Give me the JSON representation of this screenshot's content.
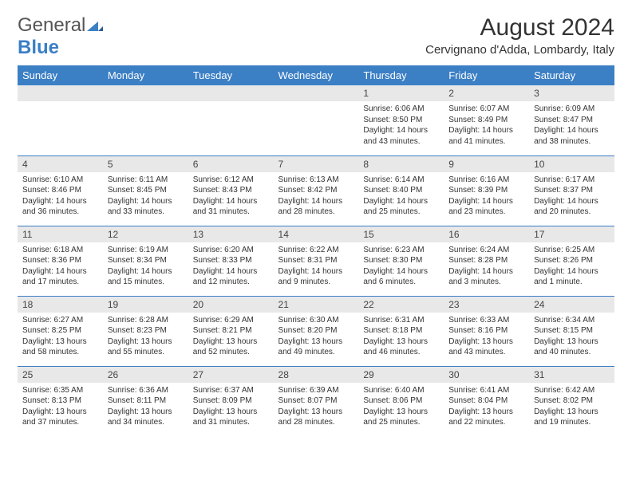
{
  "brand": {
    "text1": "General",
    "text2": "Blue",
    "icon_color": "#3b7fc4"
  },
  "title": {
    "month": "August 2024",
    "location": "Cervignano d'Adda, Lombardy, Italy"
  },
  "colors": {
    "header_bg": "#3b7fc4",
    "header_text": "#ffffff",
    "daynum_bg": "#e8e8e8",
    "border": "#3b7fc4",
    "body_text": "#333333"
  },
  "weekdays": [
    "Sunday",
    "Monday",
    "Tuesday",
    "Wednesday",
    "Thursday",
    "Friday",
    "Saturday"
  ],
  "weeks": [
    [
      null,
      null,
      null,
      null,
      {
        "n": "1",
        "sr": "6:06 AM",
        "ss": "8:50 PM",
        "dh": "14",
        "dm": "43"
      },
      {
        "n": "2",
        "sr": "6:07 AM",
        "ss": "8:49 PM",
        "dh": "14",
        "dm": "41"
      },
      {
        "n": "3",
        "sr": "6:09 AM",
        "ss": "8:47 PM",
        "dh": "14",
        "dm": "38"
      }
    ],
    [
      {
        "n": "4",
        "sr": "6:10 AM",
        "ss": "8:46 PM",
        "dh": "14",
        "dm": "36"
      },
      {
        "n": "5",
        "sr": "6:11 AM",
        "ss": "8:45 PM",
        "dh": "14",
        "dm": "33"
      },
      {
        "n": "6",
        "sr": "6:12 AM",
        "ss": "8:43 PM",
        "dh": "14",
        "dm": "31"
      },
      {
        "n": "7",
        "sr": "6:13 AM",
        "ss": "8:42 PM",
        "dh": "14",
        "dm": "28"
      },
      {
        "n": "8",
        "sr": "6:14 AM",
        "ss": "8:40 PM",
        "dh": "14",
        "dm": "25"
      },
      {
        "n": "9",
        "sr": "6:16 AM",
        "ss": "8:39 PM",
        "dh": "14",
        "dm": "23"
      },
      {
        "n": "10",
        "sr": "6:17 AM",
        "ss": "8:37 PM",
        "dh": "14",
        "dm": "20"
      }
    ],
    [
      {
        "n": "11",
        "sr": "6:18 AM",
        "ss": "8:36 PM",
        "dh": "14",
        "dm": "17"
      },
      {
        "n": "12",
        "sr": "6:19 AM",
        "ss": "8:34 PM",
        "dh": "14",
        "dm": "15"
      },
      {
        "n": "13",
        "sr": "6:20 AM",
        "ss": "8:33 PM",
        "dh": "14",
        "dm": "12"
      },
      {
        "n": "14",
        "sr": "6:22 AM",
        "ss": "8:31 PM",
        "dh": "14",
        "dm": "9"
      },
      {
        "n": "15",
        "sr": "6:23 AM",
        "ss": "8:30 PM",
        "dh": "14",
        "dm": "6"
      },
      {
        "n": "16",
        "sr": "6:24 AM",
        "ss": "8:28 PM",
        "dh": "14",
        "dm": "3"
      },
      {
        "n": "17",
        "sr": "6:25 AM",
        "ss": "8:26 PM",
        "dh": "14",
        "dm": "1"
      }
    ],
    [
      {
        "n": "18",
        "sr": "6:27 AM",
        "ss": "8:25 PM",
        "dh": "13",
        "dm": "58"
      },
      {
        "n": "19",
        "sr": "6:28 AM",
        "ss": "8:23 PM",
        "dh": "13",
        "dm": "55"
      },
      {
        "n": "20",
        "sr": "6:29 AM",
        "ss": "8:21 PM",
        "dh": "13",
        "dm": "52"
      },
      {
        "n": "21",
        "sr": "6:30 AM",
        "ss": "8:20 PM",
        "dh": "13",
        "dm": "49"
      },
      {
        "n": "22",
        "sr": "6:31 AM",
        "ss": "8:18 PM",
        "dh": "13",
        "dm": "46"
      },
      {
        "n": "23",
        "sr": "6:33 AM",
        "ss": "8:16 PM",
        "dh": "13",
        "dm": "43"
      },
      {
        "n": "24",
        "sr": "6:34 AM",
        "ss": "8:15 PM",
        "dh": "13",
        "dm": "40"
      }
    ],
    [
      {
        "n": "25",
        "sr": "6:35 AM",
        "ss": "8:13 PM",
        "dh": "13",
        "dm": "37"
      },
      {
        "n": "26",
        "sr": "6:36 AM",
        "ss": "8:11 PM",
        "dh": "13",
        "dm": "34"
      },
      {
        "n": "27",
        "sr": "6:37 AM",
        "ss": "8:09 PM",
        "dh": "13",
        "dm": "31"
      },
      {
        "n": "28",
        "sr": "6:39 AM",
        "ss": "8:07 PM",
        "dh": "13",
        "dm": "28"
      },
      {
        "n": "29",
        "sr": "6:40 AM",
        "ss": "8:06 PM",
        "dh": "13",
        "dm": "25"
      },
      {
        "n": "30",
        "sr": "6:41 AM",
        "ss": "8:04 PM",
        "dh": "13",
        "dm": "22"
      },
      {
        "n": "31",
        "sr": "6:42 AM",
        "ss": "8:02 PM",
        "dh": "13",
        "dm": "19"
      }
    ]
  ],
  "labels": {
    "sunrise": "Sunrise:",
    "sunset": "Sunset:",
    "daylight": "Daylight:",
    "hours": "hours",
    "and": "and",
    "minutes_singular": "minute.",
    "minutes": "minutes."
  }
}
